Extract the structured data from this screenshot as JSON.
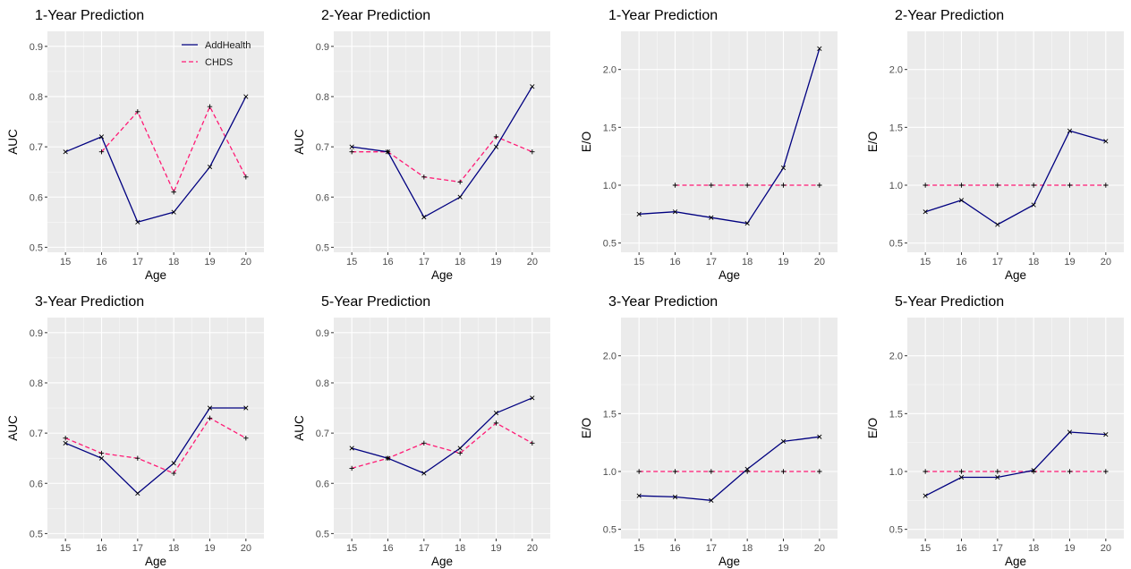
{
  "chart_data": [
    {
      "type": "line",
      "metric": "auc",
      "title": "1-Year Prediction",
      "xlabel": "Age",
      "ylabel": "AUC",
      "x": [
        15,
        16,
        17,
        18,
        19,
        20
      ],
      "xlim": [
        14.5,
        20.5
      ],
      "ylim": [
        0.49,
        0.93
      ],
      "yticks": [
        0.5,
        0.6,
        0.7,
        0.8,
        0.9
      ],
      "ytick_labels": [
        "0.5",
        "0.6",
        "0.7",
        "0.8",
        "0.9"
      ],
      "legend": "top-right",
      "series": [
        {
          "name": "AddHealth",
          "values": [
            0.69,
            0.72,
            0.55,
            0.57,
            0.66,
            0.8
          ],
          "color": "#000080",
          "dash": "solid"
        },
        {
          "name": "CHDS",
          "values": [
            null,
            0.69,
            0.77,
            0.61,
            0.78,
            0.64
          ],
          "color": "#ff1a75",
          "dash": "dashed"
        }
      ]
    },
    {
      "type": "line",
      "metric": "auc",
      "title": "2-Year Prediction",
      "xlabel": "Age",
      "ylabel": "AUC",
      "x": [
        15,
        16,
        17,
        18,
        19,
        20
      ],
      "xlim": [
        14.5,
        20.5
      ],
      "ylim": [
        0.49,
        0.93
      ],
      "yticks": [
        0.5,
        0.6,
        0.7,
        0.8,
        0.9
      ],
      "ytick_labels": [
        "0.5",
        "0.6",
        "0.7",
        "0.8",
        "0.9"
      ],
      "series": [
        {
          "values": [
            0.7,
            0.69,
            0.56,
            0.6,
            0.7,
            0.82
          ],
          "color": "#000080",
          "dash": "solid"
        },
        {
          "values": [
            0.69,
            0.69,
            0.64,
            0.63,
            0.72,
            0.69
          ],
          "color": "#ff1a75",
          "dash": "dashed"
        }
      ]
    },
    {
      "type": "line",
      "metric": "eo",
      "title": "1-Year Prediction",
      "xlabel": "Age",
      "ylabel": "E/O",
      "x": [
        15,
        16,
        17,
        18,
        19,
        20
      ],
      "xlim": [
        14.5,
        20.5
      ],
      "ylim": [
        0.42,
        2.33
      ],
      "yticks": [
        0.5,
        1.0,
        1.5,
        2.0
      ],
      "ytick_labels": [
        "0.5",
        "1.0",
        "1.5",
        "2.0"
      ],
      "series": [
        {
          "values": [
            0.75,
            0.77,
            0.72,
            0.67,
            1.15,
            2.18
          ],
          "color": "#000080",
          "dash": "solid"
        },
        {
          "values": [
            null,
            1.0,
            1.0,
            1.0,
            1.0,
            1.0
          ],
          "color": "#ff1a75",
          "dash": "dashed"
        }
      ]
    },
    {
      "type": "line",
      "metric": "eo",
      "title": "2-Year Prediction",
      "xlabel": "Age",
      "ylabel": "E/O",
      "x": [
        15,
        16,
        17,
        18,
        19,
        20
      ],
      "xlim": [
        14.5,
        20.5
      ],
      "ylim": [
        0.42,
        2.33
      ],
      "yticks": [
        0.5,
        1.0,
        1.5,
        2.0
      ],
      "ytick_labels": [
        "0.5",
        "1.0",
        "1.5",
        "2.0"
      ],
      "series": [
        {
          "values": [
            0.77,
            0.87,
            0.66,
            0.83,
            1.47,
            1.38
          ],
          "color": "#000080",
          "dash": "solid"
        },
        {
          "values": [
            1.0,
            1.0,
            1.0,
            1.0,
            1.0,
            1.0
          ],
          "color": "#ff1a75",
          "dash": "dashed"
        }
      ]
    },
    {
      "type": "line",
      "metric": "auc",
      "title": "3-Year Prediction",
      "xlabel": "Age",
      "ylabel": "AUC",
      "x": [
        15,
        16,
        17,
        18,
        19,
        20
      ],
      "xlim": [
        14.5,
        20.5
      ],
      "ylim": [
        0.49,
        0.93
      ],
      "yticks": [
        0.5,
        0.6,
        0.7,
        0.8,
        0.9
      ],
      "ytick_labels": [
        "0.5",
        "0.6",
        "0.7",
        "0.8",
        "0.9"
      ],
      "series": [
        {
          "values": [
            0.68,
            0.65,
            0.58,
            0.64,
            0.75,
            0.75
          ],
          "color": "#000080",
          "dash": "solid"
        },
        {
          "values": [
            0.69,
            0.66,
            0.65,
            0.62,
            0.73,
            0.69
          ],
          "color": "#ff1a75",
          "dash": "dashed"
        }
      ]
    },
    {
      "type": "line",
      "metric": "auc",
      "title": "5-Year Prediction",
      "xlabel": "Age",
      "ylabel": "AUC",
      "x": [
        15,
        16,
        17,
        18,
        19,
        20
      ],
      "xlim": [
        14.5,
        20.5
      ],
      "ylim": [
        0.49,
        0.93
      ],
      "yticks": [
        0.5,
        0.6,
        0.7,
        0.8,
        0.9
      ],
      "ytick_labels": [
        "0.5",
        "0.6",
        "0.7",
        "0.8",
        "0.9"
      ],
      "series": [
        {
          "values": [
            0.67,
            0.65,
            0.62,
            0.67,
            0.74,
            0.77
          ],
          "color": "#000080",
          "dash": "solid"
        },
        {
          "values": [
            0.63,
            0.65,
            0.68,
            0.66,
            0.72,
            0.68
          ],
          "color": "#ff1a75",
          "dash": "dashed"
        }
      ]
    },
    {
      "type": "line",
      "metric": "eo",
      "title": "3-Year Prediction",
      "xlabel": "Age",
      "ylabel": "E/O",
      "x": [
        15,
        16,
        17,
        18,
        19,
        20
      ],
      "xlim": [
        14.5,
        20.5
      ],
      "ylim": [
        0.42,
        2.33
      ],
      "yticks": [
        0.5,
        1.0,
        1.5,
        2.0
      ],
      "ytick_labels": [
        "0.5",
        "1.0",
        "1.5",
        "2.0"
      ],
      "series": [
        {
          "values": [
            0.79,
            0.78,
            0.75,
            1.02,
            1.26,
            1.3
          ],
          "color": "#000080",
          "dash": "solid"
        },
        {
          "values": [
            1.0,
            1.0,
            1.0,
            1.0,
            1.0,
            1.0
          ],
          "color": "#ff1a75",
          "dash": "dashed"
        }
      ]
    },
    {
      "type": "line",
      "metric": "eo",
      "title": "5-Year Prediction",
      "xlabel": "Age",
      "ylabel": "E/O",
      "x": [
        15,
        16,
        17,
        18,
        19,
        20
      ],
      "xlim": [
        14.5,
        20.5
      ],
      "ylim": [
        0.42,
        2.33
      ],
      "yticks": [
        0.5,
        1.0,
        1.5,
        2.0
      ],
      "ytick_labels": [
        "0.5",
        "1.0",
        "1.5",
        "2.0"
      ],
      "series": [
        {
          "values": [
            0.79,
            0.95,
            0.95,
            1.01,
            1.34,
            1.32
          ],
          "color": "#000080",
          "dash": "solid"
        },
        {
          "values": [
            1.0,
            1.0,
            1.0,
            1.0,
            1.0,
            1.0
          ],
          "color": "#ff1a75",
          "dash": "dashed"
        }
      ]
    }
  ],
  "style": {
    "panel_background": "#ebebeb",
    "grid_major": "#ffffff",
    "marker_color": "#000000"
  }
}
